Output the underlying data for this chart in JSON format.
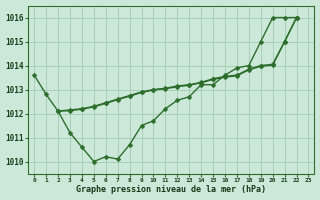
{
  "title": "Graphe pression niveau de la mer (hPa)",
  "background_color": "#cce8d8",
  "grid_color": "#aacebb",
  "line_color": "#2d6e2d",
  "ylim": [
    1009.5,
    1016.5
  ],
  "yticks": [
    1010,
    1011,
    1012,
    1013,
    1014,
    1015,
    1016
  ],
  "marker_size": 2.5,
  "line_width": 1.0,
  "line1_x": [
    0,
    1,
    2,
    3,
    4,
    5,
    6,
    7,
    8,
    9,
    10,
    11,
    12,
    13,
    14,
    15,
    16,
    17,
    18,
    19,
    20,
    21,
    22
  ],
  "line1_y": [
    1013.6,
    1012.8,
    1012.1,
    1011.2,
    1010.6,
    1010.0,
    1010.2,
    1010.1,
    1010.7,
    1011.5,
    1011.7,
    1012.2,
    1012.55,
    1012.7,
    1013.2,
    1013.2,
    1013.6,
    1013.9,
    1014.0,
    1015.0,
    1016.0,
    1016.0,
    1016.0
  ],
  "line2_x": [
    2,
    3,
    4,
    5,
    6,
    7,
    8,
    9,
    10,
    11,
    12,
    13,
    14,
    15,
    16,
    17,
    18,
    19,
    20,
    21,
    22
  ],
  "line2_y": [
    1012.1,
    1012.15,
    1012.2,
    1012.3,
    1012.45,
    1012.6,
    1012.75,
    1012.9,
    1013.0,
    1013.05,
    1013.15,
    1013.2,
    1013.3,
    1013.45,
    1013.55,
    1013.6,
    1013.85,
    1014.0,
    1014.05,
    1015.0,
    1016.0
  ],
  "line3_x": [
    2,
    3,
    4,
    5,
    6,
    7,
    8,
    9,
    10,
    11,
    12,
    13,
    14,
    15,
    16,
    17,
    18,
    19,
    20,
    21,
    22
  ],
  "line3_y": [
    1012.1,
    1012.12,
    1012.18,
    1012.28,
    1012.42,
    1012.58,
    1012.72,
    1012.88,
    1012.98,
    1013.03,
    1013.12,
    1013.18,
    1013.28,
    1013.42,
    1013.52,
    1013.57,
    1013.82,
    1013.97,
    1014.02,
    1015.0,
    1016.0
  ]
}
